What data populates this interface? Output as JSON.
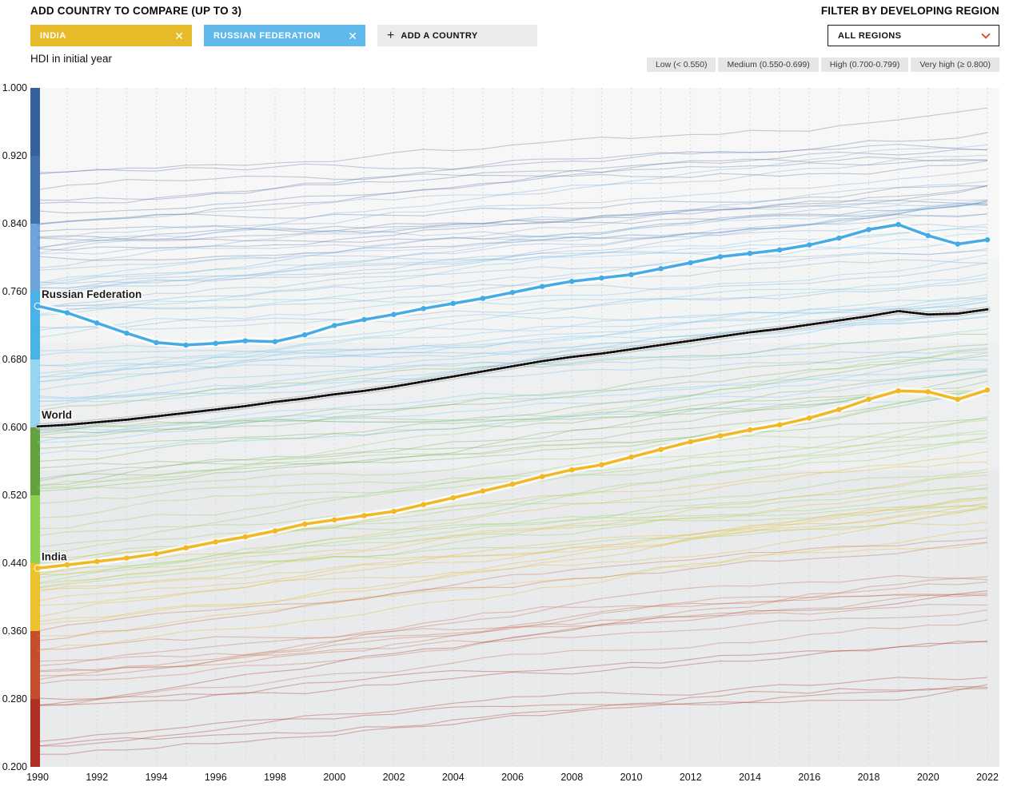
{
  "header": {
    "add_country_label": "ADD COUNTRY TO COMPARE (UP TO 3)",
    "filter_label": "FILTER BY DEVELOPING REGION",
    "region_select_value": "ALL REGIONS",
    "chips": [
      {
        "label": "INDIA",
        "color": "#E7BA2A",
        "remove_label": "✕"
      },
      {
        "label": "RUSSIAN FEDERATION",
        "color": "#5FB9EA",
        "remove_label": "✕"
      }
    ],
    "add_chip_label": "ADD A COUNTRY",
    "add_chip_plus": "+"
  },
  "subtitle": "HDI in initial year",
  "legend": [
    {
      "label": "Low (< 0.550)"
    },
    {
      "label": "Medium (0.550-0.699)"
    },
    {
      "label": "High (0.700-0.799)"
    },
    {
      "label": "Very high (≥ 0.800)"
    }
  ],
  "chart_data": {
    "type": "line",
    "title": "HDI in initial year",
    "xlabel": "",
    "ylabel": "HDI",
    "ylim": [
      0.2,
      1.0
    ],
    "xlim": [
      1990,
      2022
    ],
    "grid": "vertical-dashed-per-year",
    "x": [
      1990,
      1991,
      1992,
      1993,
      1994,
      1995,
      1996,
      1997,
      1998,
      1999,
      2000,
      2001,
      2002,
      2003,
      2004,
      2005,
      2006,
      2007,
      2008,
      2009,
      2010,
      2011,
      2012,
      2013,
      2014,
      2015,
      2016,
      2017,
      2018,
      2019,
      2020,
      2021,
      2022
    ],
    "x_tick_labels": [
      "1990",
      "1992",
      "1994",
      "1996",
      "1998",
      "2000",
      "2002",
      "2004",
      "2006",
      "2008",
      "2010",
      "2012",
      "2014",
      "2016",
      "2018",
      "2020",
      "2022"
    ],
    "y_tick_labels": [
      "1.000",
      "0.920",
      "0.840",
      "0.760",
      "0.680",
      "0.600",
      "0.520",
      "0.440",
      "0.360",
      "0.280",
      "0.200"
    ],
    "series": [
      {
        "name": "World",
        "label": "World",
        "style": "dashed-black",
        "color": "#111111",
        "values": [
          0.601,
          0.603,
          0.606,
          0.609,
          0.613,
          0.617,
          0.621,
          0.625,
          0.63,
          0.634,
          0.639,
          0.643,
          0.648,
          0.654,
          0.66,
          0.666,
          0.672,
          0.678,
          0.683,
          0.687,
          0.692,
          0.697,
          0.702,
          0.707,
          0.712,
          0.716,
          0.721,
          0.726,
          0.731,
          0.737,
          0.733,
          0.734,
          0.739
        ]
      },
      {
        "name": "India",
        "label": "India",
        "style": "solid-dots",
        "color": "#F1B824",
        "values": [
          0.434,
          0.438,
          0.442,
          0.446,
          0.451,
          0.458,
          0.465,
          0.471,
          0.478,
          0.486,
          0.491,
          0.496,
          0.501,
          0.509,
          0.517,
          0.525,
          0.533,
          0.542,
          0.55,
          0.556,
          0.565,
          0.574,
          0.583,
          0.59,
          0.597,
          0.603,
          0.611,
          0.621,
          0.633,
          0.643,
          0.642,
          0.633,
          0.644
        ]
      },
      {
        "name": "Russian Federation",
        "label": "Russian Federation",
        "style": "solid-dots",
        "color": "#45ABE5",
        "values": [
          0.743,
          0.735,
          0.723,
          0.711,
          0.7,
          0.697,
          0.699,
          0.702,
          0.701,
          0.709,
          0.72,
          0.727,
          0.733,
          0.74,
          0.746,
          0.752,
          0.759,
          0.766,
          0.772,
          0.776,
          0.78,
          0.787,
          0.794,
          0.801,
          0.805,
          0.809,
          0.815,
          0.823,
          0.833,
          0.839,
          0.826,
          0.816,
          0.821
        ]
      }
    ],
    "category_bands": [
      {
        "name": "Very high",
        "from": 0.8,
        "to": 1.0,
        "color": "#f7f7f7"
      },
      {
        "name": "High",
        "from": 0.7,
        "to": 0.8,
        "color": "#f3f4f4"
      },
      {
        "name": "Medium",
        "from": 0.55,
        "to": 0.7,
        "color": "#edeff0"
      },
      {
        "name": "Low",
        "from": 0.2,
        "to": 0.55,
        "color": "#e8eaec"
      }
    ],
    "color_scale": {
      "title": "HDI in initial year",
      "segments": [
        {
          "from": 0.92,
          "to": 1.0,
          "color": "#35629E"
        },
        {
          "from": 0.84,
          "to": 0.92,
          "color": "#4271B0"
        },
        {
          "from": 0.76,
          "to": 0.84,
          "color": "#6FA3DC"
        },
        {
          "from": 0.68,
          "to": 0.76,
          "color": "#49B2E8"
        },
        {
          "from": 0.6,
          "to": 0.68,
          "color": "#97D6F3"
        },
        {
          "from": 0.52,
          "to": 0.6,
          "color": "#61A23C"
        },
        {
          "from": 0.44,
          "to": 0.52,
          "color": "#8ED054"
        },
        {
          "from": 0.36,
          "to": 0.44,
          "color": "#EDC32D"
        },
        {
          "from": 0.28,
          "to": 0.36,
          "color": "#C44D2E"
        },
        {
          "from": 0.2,
          "to": 0.28,
          "color": "#AC3122"
        }
      ]
    },
    "background_lines": {
      "note": "unlabeled country trajectories colored by HDI in initial year",
      "seed": 11,
      "groups": [
        {
          "color": "#49699c",
          "opacity": 0.33,
          "count": 14,
          "start": [
            0.8,
            0.92
          ],
          "drift": [
            0.03,
            0.08
          ]
        },
        {
          "color": "#6b9fd4",
          "opacity": 0.32,
          "count": 16,
          "start": [
            0.72,
            0.85
          ],
          "drift": [
            0.04,
            0.1
          ]
        },
        {
          "color": "#59b5e7",
          "opacity": 0.3,
          "count": 18,
          "start": [
            0.63,
            0.77
          ],
          "drift": [
            0.05,
            0.12
          ]
        },
        {
          "color": "#86ccec",
          "opacity": 0.42,
          "count": 10,
          "start": [
            0.57,
            0.67
          ],
          "drift": [
            0.06,
            0.12
          ]
        },
        {
          "color": "#61a23c",
          "opacity": 0.3,
          "count": 12,
          "start": [
            0.52,
            0.62
          ],
          "drift": [
            0.07,
            0.13
          ]
        },
        {
          "color": "#8ed054",
          "opacity": 0.35,
          "count": 16,
          "start": [
            0.41,
            0.55
          ],
          "drift": [
            0.08,
            0.15
          ]
        },
        {
          "color": "#e3bd35",
          "opacity": 0.38,
          "count": 13,
          "start": [
            0.33,
            0.45
          ],
          "drift": [
            0.07,
            0.15
          ]
        },
        {
          "color": "#c4562f",
          "opacity": 0.32,
          "count": 11,
          "start": [
            0.26,
            0.37
          ],
          "drift": [
            0.06,
            0.14
          ]
        },
        {
          "color": "#a93422",
          "opacity": 0.36,
          "count": 7,
          "start": [
            0.2,
            0.29
          ],
          "drift": [
            0.05,
            0.13
          ]
        }
      ]
    }
  }
}
